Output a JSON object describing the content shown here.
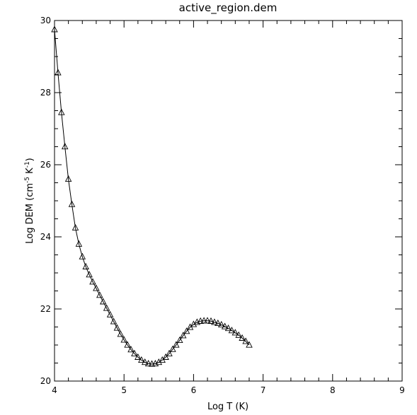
{
  "chart_data": {
    "type": "line",
    "title": "active_region.dem",
    "xlabel": "Log T (K)",
    "ylabel": {
      "prefix": "Log DEM (cm",
      "exp1": "-5",
      "mid": " K",
      "exp2": "-1",
      "suffix": ")"
    },
    "xlim": [
      4,
      9
    ],
    "ylim": [
      20,
      30
    ],
    "xticks": [
      "4",
      "5",
      "6",
      "7",
      "8",
      "9"
    ],
    "yticks": [
      "20",
      "22",
      "24",
      "26",
      "28",
      "30"
    ],
    "grid": false,
    "marker": "triangle",
    "series": [
      {
        "x": [
          4.0,
          4.05,
          4.1,
          4.15,
          4.2,
          4.25,
          4.3,
          4.35,
          4.4,
          4.45,
          4.5,
          4.55,
          4.6,
          4.65,
          4.7,
          4.75,
          4.8,
          4.85,
          4.9,
          4.95,
          5.0,
          5.05,
          5.1,
          5.15,
          5.2,
          5.25,
          5.3,
          5.35,
          5.4,
          5.45,
          5.5,
          5.55,
          5.6,
          5.65,
          5.7,
          5.75,
          5.8,
          5.85,
          5.9,
          5.95,
          6.0,
          6.05,
          6.1,
          6.15,
          6.2,
          6.25,
          6.3,
          6.35,
          6.4,
          6.45,
          6.5,
          6.55,
          6.6,
          6.65,
          6.7,
          6.75,
          6.8
        ],
        "y": [
          29.75,
          28.55,
          27.45,
          26.5,
          25.6,
          24.9,
          24.25,
          23.8,
          23.45,
          23.17,
          22.95,
          22.75,
          22.57,
          22.38,
          22.2,
          22.02,
          21.84,
          21.65,
          21.47,
          21.3,
          21.14,
          21.0,
          20.87,
          20.76,
          20.66,
          20.58,
          20.52,
          20.48,
          20.47,
          20.48,
          20.52,
          20.58,
          20.66,
          20.76,
          20.88,
          21.0,
          21.13,
          21.26,
          21.38,
          21.49,
          21.57,
          21.63,
          21.66,
          21.67,
          21.67,
          21.66,
          21.63,
          21.6,
          21.56,
          21.51,
          21.46,
          21.4,
          21.34,
          21.27,
          21.19,
          21.1,
          21.0
        ]
      }
    ]
  }
}
